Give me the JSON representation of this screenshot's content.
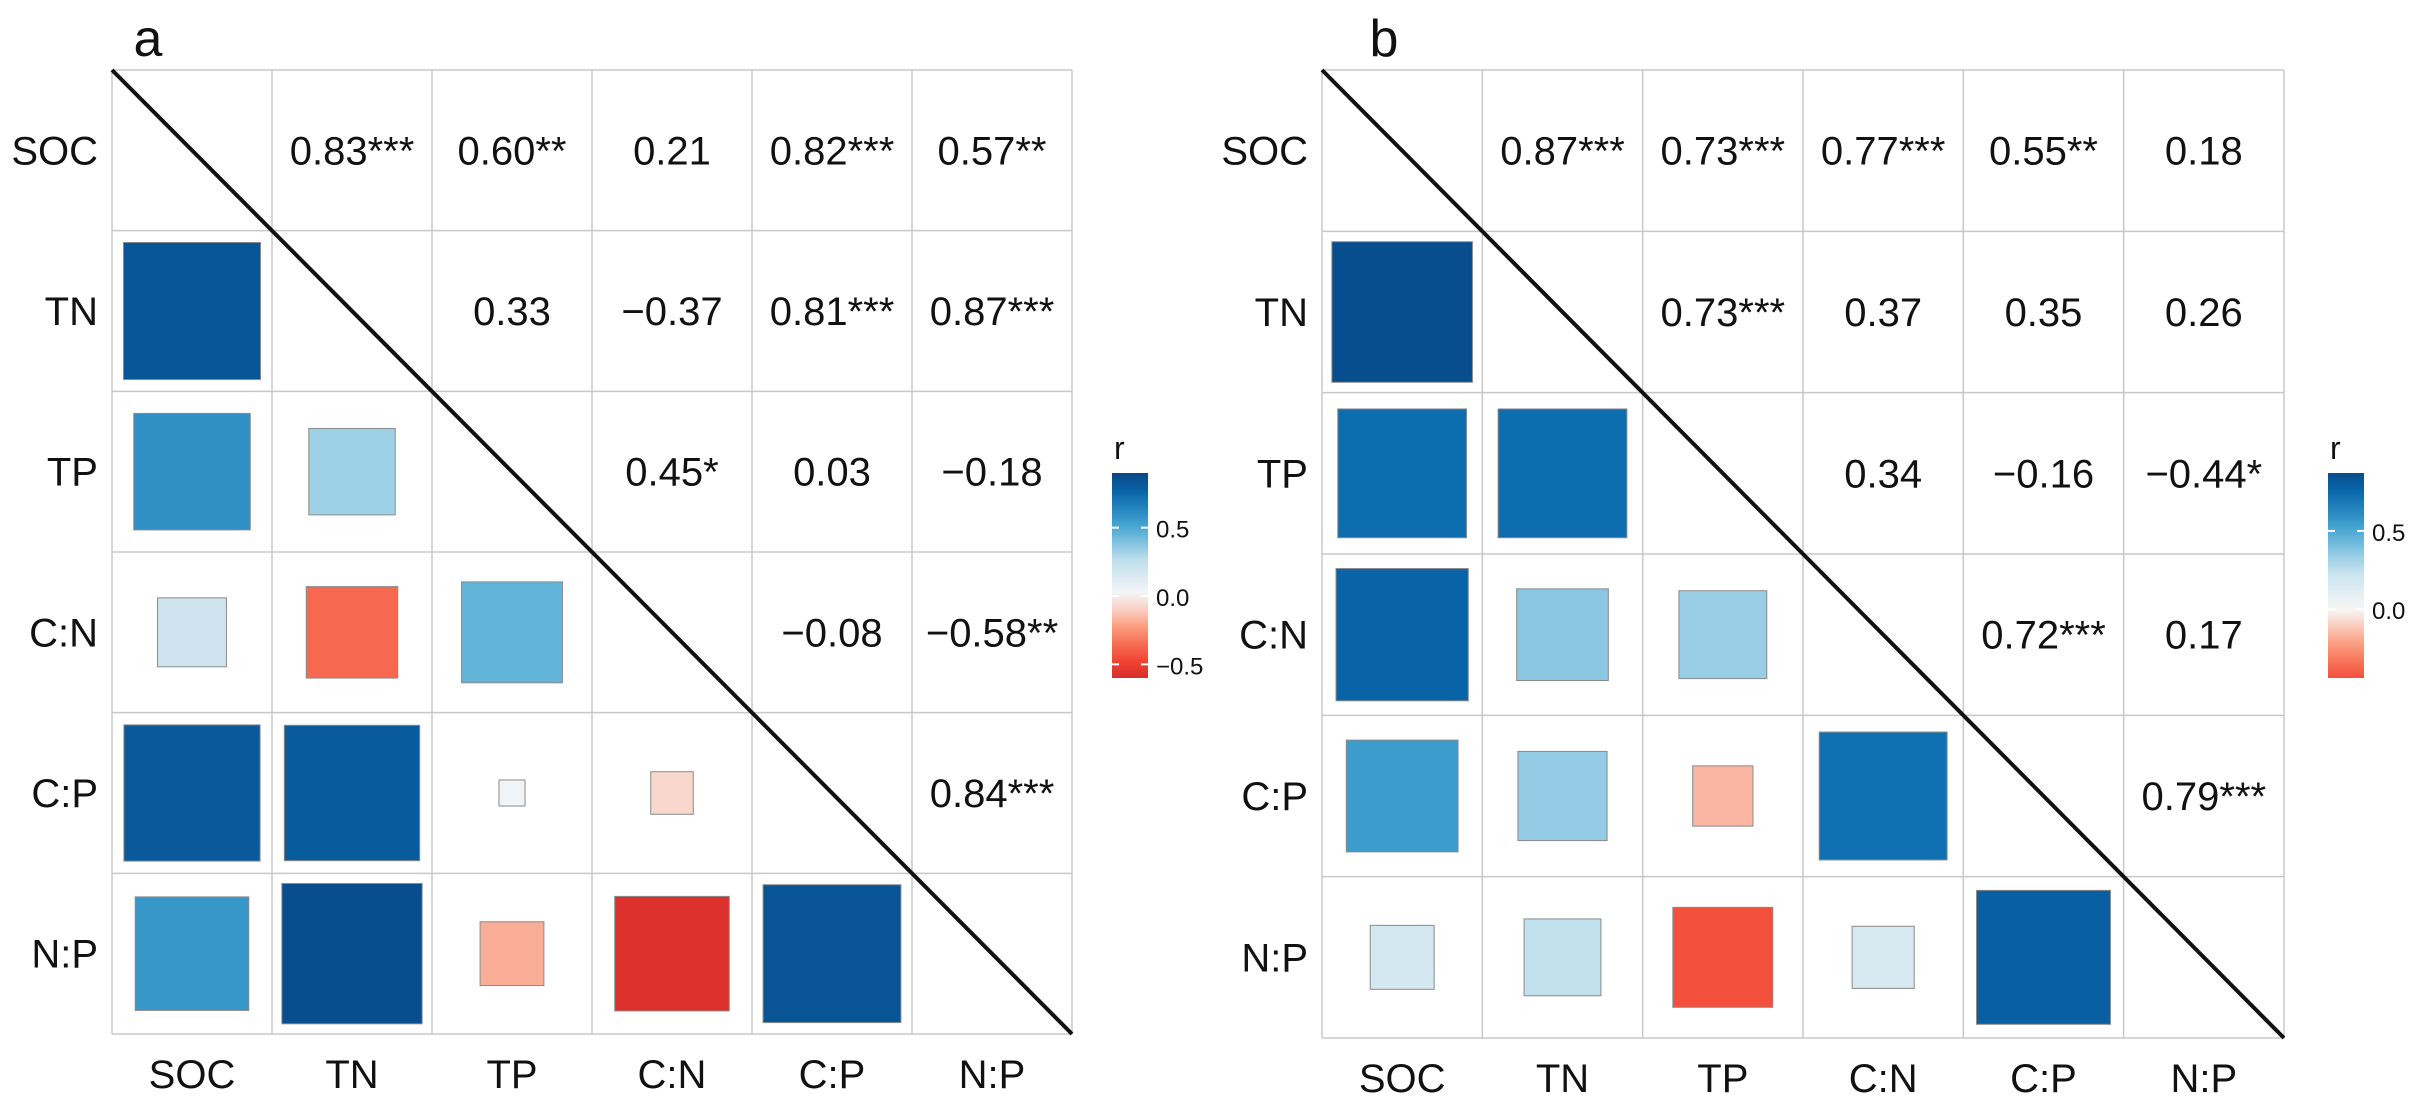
{
  "chart_data": [
    {
      "type": "heatmap",
      "panel_label": "a",
      "variables": [
        "SOC",
        "TN",
        "TP",
        "C:N",
        "C:P",
        "N:P"
      ],
      "upper_labels": [
        [
          "",
          "0.83***",
          "0.60**",
          "0.21",
          "0.82***",
          "0.57**"
        ],
        [
          "",
          "",
          "0.33",
          "−0.37",
          "0.81***",
          "0.87***"
        ],
        [
          "",
          "",
          "",
          "0.45*",
          "0.03",
          "−0.18"
        ],
        [
          "",
          "",
          "",
          "",
          "−0.08",
          "−0.58**"
        ],
        [
          "",
          "",
          "",
          "",
          "",
          "0.84***"
        ],
        [
          "",
          "",
          "",
          "",
          "",
          ""
        ]
      ],
      "lower_values": [
        [],
        [
          0.83
        ],
        [
          0.6,
          0.33
        ],
        [
          0.21,
          -0.37,
          0.45
        ],
        [
          0.82,
          0.81,
          0.03,
          -0.08
        ],
        [
          0.57,
          0.87,
          -0.18,
          -0.58,
          0.84
        ]
      ],
      "legend": {
        "title": "r",
        "range": [
          -0.6,
          0.9
        ],
        "ticks": [
          0.5,
          0.0,
          -0.5
        ],
        "tick_labels": [
          "0.5",
          "0.0",
          "−0.5"
        ]
      }
    },
    {
      "type": "heatmap",
      "panel_label": "b",
      "variables": [
        "SOC",
        "TN",
        "TP",
        "C:N",
        "C:P",
        "N:P"
      ],
      "upper_labels": [
        [
          "",
          "0.87***",
          "0.73***",
          "0.77***",
          "0.55**",
          "0.18"
        ],
        [
          "",
          "",
          "0.73***",
          "0.37",
          "0.35",
          "0.26"
        ],
        [
          "",
          "",
          "",
          "0.34",
          "−0.16",
          "−0.44*"
        ],
        [
          "",
          "",
          "",
          "",
          "0.72***",
          "0.17"
        ],
        [
          "",
          "",
          "",
          "",
          "",
          "0.79***"
        ],
        [
          "",
          "",
          "",
          "",
          "",
          ""
        ]
      ],
      "lower_values": [
        [],
        [
          0.87
        ],
        [
          0.73,
          0.73
        ],
        [
          0.77,
          0.37,
          0.34
        ],
        [
          0.55,
          0.35,
          -0.16,
          0.72
        ],
        [
          0.18,
          0.26,
          -0.44,
          0.17,
          0.79
        ]
      ],
      "legend": {
        "title": "r",
        "range": [
          -0.44,
          0.87
        ],
        "ticks": [
          0.5,
          0.0
        ],
        "tick_labels": [
          "0.5",
          "0.0"
        ]
      }
    }
  ]
}
